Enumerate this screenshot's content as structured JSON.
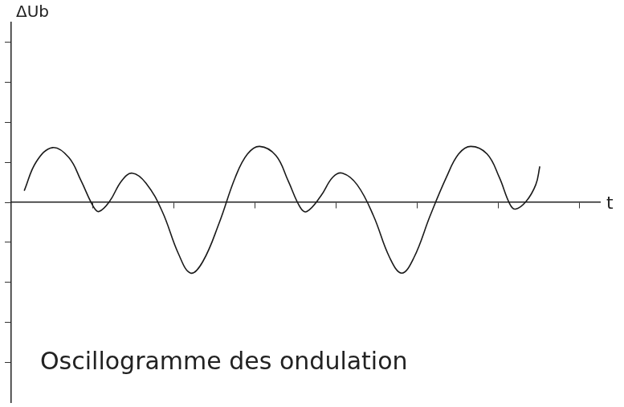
{
  "chart_data": {
    "type": "line",
    "title": "Oscillogramme des ondulation",
    "ylabel": "ΔUb",
    "xlabel": "t",
    "x": [
      0.32,
      0.62,
      1.02,
      1.42,
      1.72,
      2.02,
      2.16,
      2.42,
      2.72,
      2.98,
      3.32,
      3.72,
      4.12,
      4.42,
      4.72,
      5.12,
      5.52,
      5.82,
      6.12,
      6.52,
      6.82,
      7.12,
      7.28,
      7.62,
      7.92,
      8.16,
      8.52,
      8.92,
      9.32,
      9.62,
      9.92,
      10.32,
      10.72,
      11.02,
      11.32,
      11.72,
      12.02,
      12.28,
      12.42,
      12.68,
      12.92,
      13.02
    ],
    "values": [
      0.29,
      1.02,
      1.37,
      1.12,
      0.54,
      -0.1,
      -0.23,
      0.02,
      0.54,
      0.73,
      0.48,
      -0.23,
      -1.29,
      -1.77,
      -1.48,
      -0.52,
      0.63,
      1.21,
      1.4,
      1.17,
      0.54,
      -0.13,
      -0.23,
      0.15,
      0.63,
      0.73,
      0.44,
      -0.33,
      -1.38,
      -1.77,
      -1.38,
      -0.33,
      0.63,
      1.21,
      1.4,
      1.21,
      0.63,
      -0.04,
      -0.17,
      0.02,
      0.44,
      0.9
    ],
    "color": "#1a1a1a",
    "xlim": [
      0,
      14.5
    ],
    "xticks": [
      2,
      4,
      6,
      8,
      10,
      12,
      14
    ],
    "ylim": [
      -5,
      4.5
    ],
    "yticks": [
      -4,
      -3,
      -2,
      -1,
      0,
      1,
      2,
      3,
      4
    ],
    "grid": false,
    "tick_labels": false
  }
}
